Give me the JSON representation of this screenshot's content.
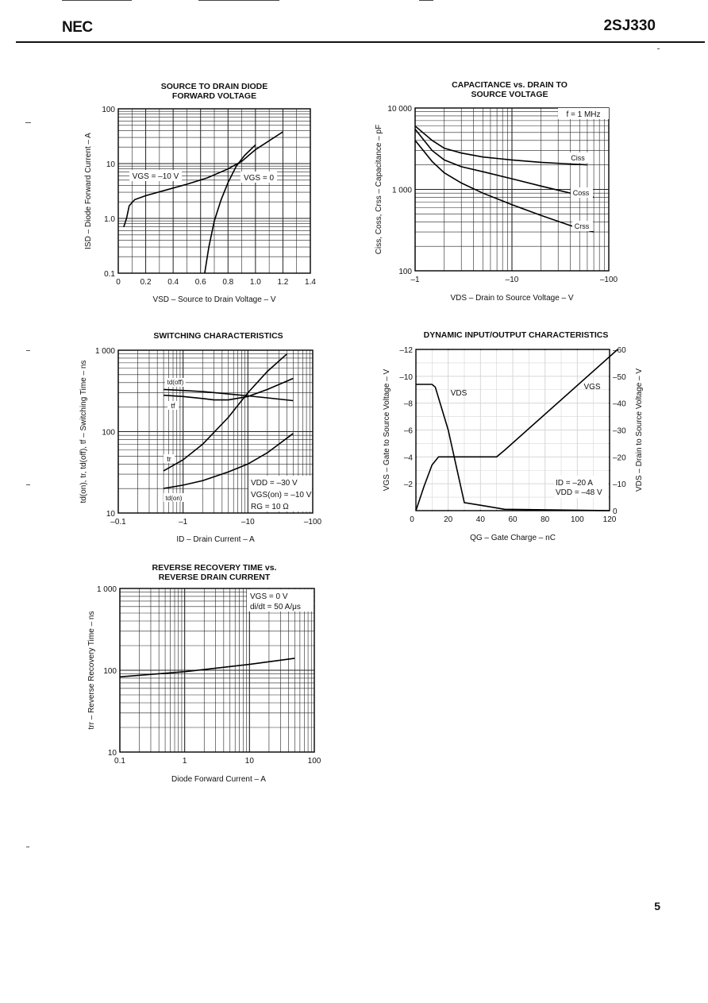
{
  "header": {
    "brand": "NEC",
    "part_number": "2SJ330"
  },
  "page_number": "5",
  "chart_data": [
    {
      "id": "sd",
      "type": "line",
      "title_lines": [
        "SOURCE TO DRAIN DIODE",
        "FORWARD VOLTAGE"
      ],
      "xlabel": "VSD – Source to Drain Voltage – V",
      "ylabel": "ISD – Diode Forward Current – A",
      "xscale": "linear",
      "yscale": "log",
      "xlim": [
        0,
        1.4
      ],
      "ylim": [
        0.1,
        100
      ],
      "xticks": [
        "0",
        "0.2",
        "0.4",
        "0.6",
        "0.8",
        "1.0",
        "1.2",
        "1.4"
      ],
      "yticks": [
        "0.1",
        "1.0",
        "10",
        "100"
      ],
      "annotations": [
        "VGS = –10 V",
        "VGS = 0"
      ],
      "series": [
        {
          "name": "VGS = –10 V",
          "x": [
            0.04,
            0.06,
            0.08,
            0.12,
            0.2,
            0.35,
            0.5,
            0.65,
            0.8,
            0.9,
            1.0,
            1.2
          ],
          "y": [
            0.7,
            1.0,
            1.7,
            2.2,
            2.6,
            3.3,
            4.2,
            5.5,
            8.0,
            11,
            18,
            38
          ]
        },
        {
          "name": "VGS = 0",
          "x": [
            0.63,
            0.66,
            0.7,
            0.75,
            0.8,
            0.86,
            0.92,
            1.0
          ],
          "y": [
            0.1,
            0.3,
            0.9,
            2.2,
            4.5,
            9,
            14,
            22
          ]
        }
      ]
    },
    {
      "id": "cap",
      "type": "line",
      "title_lines": [
        "CAPACITANCE vs. DRAIN TO",
        "SOURCE VOLTAGE"
      ],
      "xlabel": "VDS – Drain to Source Voltage – V",
      "ylabel": "Ciss, Coss, Crss – Capacitance – pF",
      "xscale": "log",
      "yscale": "log",
      "xlim": [
        1,
        100
      ],
      "ylim": [
        100,
        10000
      ],
      "xticks": [
        "–1",
        "–10",
        "–100"
      ],
      "yticks": [
        "100",
        "1 000",
        "10 000"
      ],
      "annotations": [
        "f = 1 MHz",
        "Ciss",
        "Coss",
        "Crss"
      ],
      "series": [
        {
          "name": "Ciss",
          "x": [
            1,
            1.5,
            2,
            3,
            5,
            10,
            20,
            40,
            60
          ],
          "y": [
            6000,
            4000,
            3200,
            2800,
            2500,
            2300,
            2150,
            2050,
            2000
          ]
        },
        {
          "name": "Coss",
          "x": [
            1,
            1.5,
            2,
            3,
            5,
            10,
            20,
            40,
            70
          ],
          "y": [
            5500,
            3000,
            2300,
            1900,
            1650,
            1350,
            1100,
            900,
            800
          ]
        },
        {
          "name": "Crss",
          "x": [
            1,
            1.5,
            2,
            3,
            5,
            10,
            20,
            40,
            70
          ],
          "y": [
            4000,
            2200,
            1600,
            1200,
            900,
            650,
            480,
            360,
            300
          ]
        }
      ]
    },
    {
      "id": "sw",
      "type": "line",
      "title_lines": [
        "SWITCHING CHARACTERISTICS"
      ],
      "xlabel": "ID – Drain Current – A",
      "ylabel": "td(on), tr, td(off), tf – Switching Time – ns",
      "xscale": "log",
      "yscale": "log",
      "xlim": [
        0.1,
        100
      ],
      "ylim": [
        10,
        1000
      ],
      "xticks": [
        "–0.1",
        "–1",
        "–10",
        "–100"
      ],
      "yticks": [
        "10",
        "100",
        "1 000"
      ],
      "annotations": [
        "td(off)",
        "tf",
        "tr",
        "td(on)",
        "VDD = –30 V",
        "VGS(on) = –10 V",
        "RG = 10 Ω"
      ],
      "series": [
        {
          "name": "td(off)",
          "x": [
            0.5,
            1,
            2,
            5,
            10,
            20,
            50
          ],
          "y": [
            330,
            320,
            310,
            290,
            275,
            260,
            240
          ]
        },
        {
          "name": "tf",
          "x": [
            0.5,
            1,
            2,
            3,
            5,
            10,
            20,
            50
          ],
          "y": [
            280,
            270,
            255,
            245,
            245,
            270,
            330,
            450
          ]
        },
        {
          "name": "tr",
          "x": [
            0.5,
            1,
            2,
            5,
            10,
            20,
            40
          ],
          "y": [
            33,
            45,
            70,
            150,
            300,
            550,
            900
          ]
        },
        {
          "name": "td(on)",
          "x": [
            0.5,
            1,
            2,
            5,
            10,
            20,
            50
          ],
          "y": [
            20,
            22,
            25,
            32,
            40,
            55,
            95
          ]
        }
      ]
    },
    {
      "id": "dyn",
      "type": "line",
      "title_lines": [
        "DYNAMIC INPUT/OUTPUT CHARACTERISTICS"
      ],
      "xlabel": "QG – Gate Charge – nC",
      "ylabel": "VGS – Gate to Source Voltage – V",
      "y2label": "VDS – Drain to Source Voltage – V",
      "xscale": "linear",
      "yscale": "linear",
      "xlim": [
        0,
        120
      ],
      "ylim": [
        0,
        -12
      ],
      "y2lim": [
        0,
        -60
      ],
      "xticks": [
        "0",
        "20",
        "40",
        "60",
        "80",
        "100",
        "120"
      ],
      "yticks": [
        "–2",
        "–4",
        "–6",
        "–8",
        "–10",
        "–12"
      ],
      "y2ticks": [
        "0",
        "–10",
        "–20",
        "–30",
        "–40",
        "–50",
        "–60"
      ],
      "annotations": [
        "VDS",
        "VGS",
        "ID = –20 A",
        "VDD = –48 V"
      ],
      "series": [
        {
          "name": "VGS",
          "axis": "left",
          "x": [
            0,
            5,
            10,
            14,
            20,
            50,
            55,
            125
          ],
          "y": [
            0,
            -1.8,
            -3.4,
            -4.0,
            -4.0,
            -4.0,
            -4.5,
            -12
          ]
        },
        {
          "name": "VDS",
          "axis": "right",
          "x": [
            0,
            10,
            12,
            20,
            30,
            40,
            55,
            120
          ],
          "y": [
            -47,
            -47,
            -46,
            -30,
            -3,
            -2,
            -0.5,
            0
          ]
        }
      ]
    },
    {
      "id": "rr",
      "type": "line",
      "title_lines": [
        "REVERSE RECOVERY TIME vs.",
        "REVERSE DRAIN CURRENT"
      ],
      "xlabel": "Diode Forward Current – A",
      "ylabel": "trr – Reverse Recovery Time – ns",
      "xscale": "log",
      "yscale": "log",
      "xlim": [
        0.1,
        100
      ],
      "ylim": [
        10,
        1000
      ],
      "xticks": [
        "0.1",
        "1",
        "10",
        "100"
      ],
      "yticks": [
        "10",
        "100",
        "1 000"
      ],
      "annotations": [
        "VGS = 0 V",
        "di/dt = 50 A/μs"
      ],
      "series": [
        {
          "name": "trr",
          "x": [
            0.1,
            1,
            10,
            50
          ],
          "y": [
            83,
            96,
            118,
            140
          ]
        }
      ]
    }
  ]
}
